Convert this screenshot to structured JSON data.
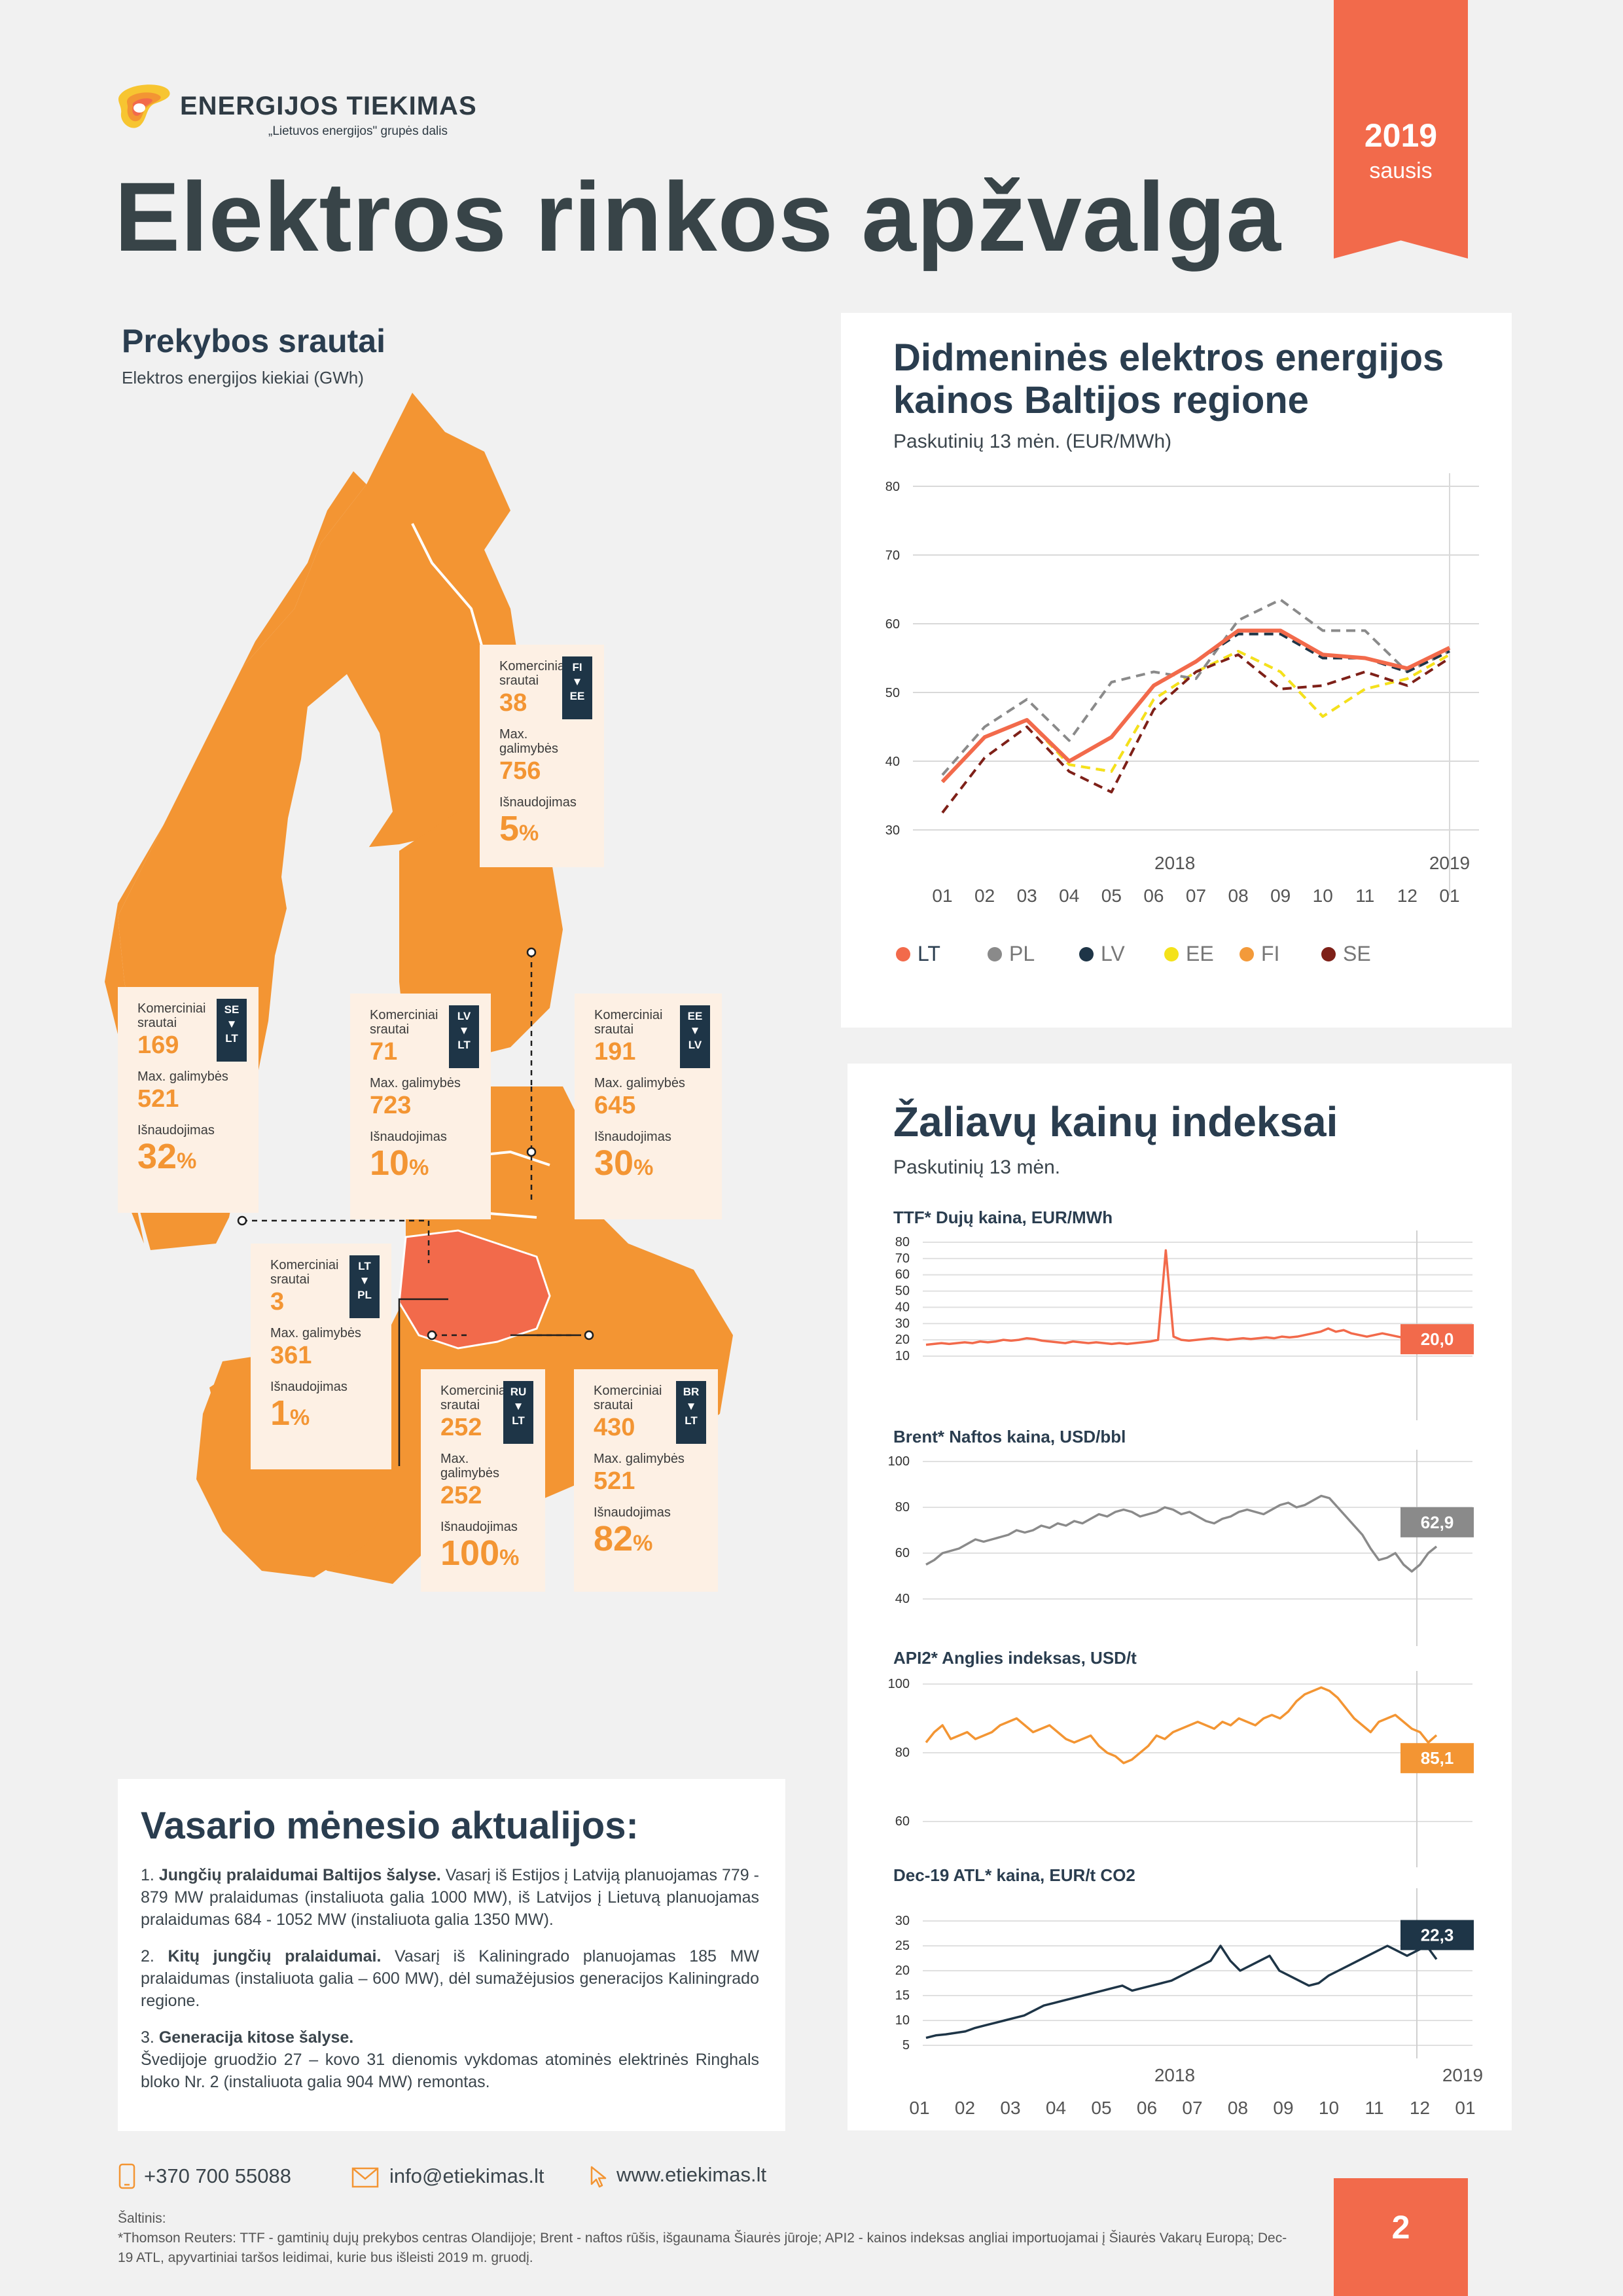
{
  "header": {
    "company": "ENERGIJOS TIEKIMAS",
    "company_sub": "„Lietuvos energijos\" grupės dalis",
    "title": "Elektros rinkos apžvalga",
    "year": "2019",
    "month": "sausis"
  },
  "trade": {
    "title": "Prekybos srautai",
    "subtitle": "Elektros energijos kiekiai (GWh)",
    "label_commercial": "Komerciniai srautai",
    "label_capacity": "Max. galimybės",
    "label_usage": "Išnaudojimas",
    "pct_sign": "%",
    "flows": [
      {
        "id": "fi-ee",
        "from": "FI",
        "to": "EE",
        "commercial": "38",
        "capacity": "756",
        "usage": "5"
      },
      {
        "id": "se-lt",
        "from": "SE",
        "to": "LT",
        "commercial": "169",
        "capacity": "521",
        "usage": "32"
      },
      {
        "id": "lv-lt",
        "from": "LV",
        "to": "LT",
        "commercial": "71",
        "capacity": "723",
        "usage": "10"
      },
      {
        "id": "ee-lv",
        "from": "EE",
        "to": "LV",
        "commercial": "191",
        "capacity": "645",
        "usage": "30"
      },
      {
        "id": "lt-pl",
        "from": "LT",
        "to": "PL",
        "commercial": "3",
        "capacity": "361",
        "usage": "1"
      },
      {
        "id": "ru-lt",
        "from": "RU",
        "to": "LT",
        "commercial": "252",
        "capacity": "252",
        "usage": "100"
      },
      {
        "id": "br-lt",
        "from": "BR",
        "to": "LT",
        "commercial": "430",
        "capacity": "521",
        "usage": "82"
      }
    ]
  },
  "prices": {
    "title_line1": "Didmeninės elektros energijos",
    "title_line2": "kainos Baltijos regione",
    "subtitle": "Paskutinių 13 mėn. (EUR/MWh)"
  },
  "commodities": {
    "title": "Žaliavų kainų indeksai",
    "subtitle": "Paskutinių 13 mėn."
  },
  "news": {
    "title": "Vasario mėnesio aktualijos:",
    "items": [
      {
        "num": "1.",
        "head": "Jungčių pralaidumai Baltijos šalyse.",
        "body": " Vasarį iš Estijos į Latviją planuojamas 779 - 879 MW pralaidumas (instaliuota galia 1000 MW), iš Latvijos į Lietuvą planuojamas pralaidumas 684 - 1052 MW (instaliuota galia 1350 MW)."
      },
      {
        "num": "2.",
        "head": "Kitų jungčių pralaidumai.",
        "body": " Vasarį iš Kaliningrado planuojamas 185 MW pralaidumas (instaliuota galia – 600 MW), dėl sumažėjusios generacijos Kaliningrado regione."
      },
      {
        "num": "3.",
        "head": "Generacija kitose šalyse.",
        "body": "Švedijoje gruodžio 27 – kovo 31 dienomis vykdomas atominės elektrinės Ringhals bloko Nr. 2 (instaliuota galia 904 MW) remontas."
      }
    ]
  },
  "footer": {
    "phone": "+370 700 55088",
    "email": "info@etiekimas.lt",
    "web": "www.etiekimas.lt",
    "sources_label": "Šaltinis:",
    "sources_text": "*Thomson Reuters: TTF - gamtinių dujų prekybos centras Olandijoje; Brent - naftos rūšis, išgaunama Šiaurės jūroje; API2 - kainos indeksas angliai importuojamai į Šiaurės Vakarų Europą; Dec-19 ATL, apyvartiniai taršos leidimai, kurie bus išleisti 2019 m. gruodį.",
    "page": "2"
  },
  "colors": {
    "accent": "#f26a4b",
    "orange": "#f39533",
    "navy": "#1e3547",
    "LT": "#f26a4b",
    "PL": "#8a8a8a",
    "LV": "#1e3547",
    "EE": "#f4e21a",
    "FI": "#f39a3a",
    "SE": "#7e2018"
  },
  "chart_data": [
    {
      "id": "electricity",
      "type": "line",
      "x": [
        "01",
        "02",
        "03",
        "04",
        "05",
        "06",
        "07",
        "08",
        "09",
        "10",
        "11",
        "12",
        "01"
      ],
      "year_labels": [
        "2018",
        "2019"
      ],
      "ylim": [
        30,
        80
      ],
      "yticks": [
        30,
        40,
        50,
        60,
        70,
        80
      ],
      "series": [
        {
          "name": "LT",
          "style": "solid",
          "values": [
            37,
            43.5,
            46,
            40,
            43.5,
            51,
            54.5,
            59,
            59,
            55.5,
            55,
            53.5,
            56.5
          ]
        },
        {
          "name": "PL",
          "style": "dashed",
          "values": [
            38,
            45,
            49,
            43,
            51.5,
            53,
            52,
            60.5,
            63.5,
            59,
            59,
            53,
            56
          ]
        },
        {
          "name": "LV",
          "style": "dashed",
          "values": [
            37,
            43.5,
            46,
            40,
            43.5,
            51,
            54.5,
            58.5,
            58.5,
            55,
            55,
            53,
            56
          ]
        },
        {
          "name": "EE",
          "style": "dashed",
          "values": [
            37,
            43.5,
            46,
            39.5,
            38.5,
            49,
            53,
            56,
            53,
            46.5,
            50.5,
            52,
            55.5
          ]
        },
        {
          "name": "FI",
          "style": "dashed",
          "values": [
            37,
            43.5,
            46,
            39.5,
            38.5,
            49,
            53,
            56,
            53,
            46.5,
            50.5,
            52,
            55.5
          ]
        },
        {
          "name": "SE",
          "style": "dashed",
          "values": [
            32.5,
            40.5,
            45,
            38.5,
            35.5,
            47.5,
            53,
            55.5,
            50.5,
            51,
            53,
            51,
            55
          ]
        }
      ]
    },
    {
      "id": "ttf",
      "type": "line",
      "title": "TTF* Dujų kaina, EUR/MWh",
      "ylim": [
        10,
        80
      ],
      "yticks": [
        10,
        20,
        30,
        40,
        50,
        60,
        70,
        80
      ],
      "last_value": "20,0",
      "color": "#f26a4b",
      "points": [
        17,
        17.5,
        18,
        17.5,
        18,
        18.5,
        18,
        19,
        18.5,
        19,
        20,
        19.5,
        20,
        21,
        20.5,
        19.5,
        19,
        18.5,
        18,
        19,
        18.5,
        18,
        18.5,
        18,
        17.5,
        18,
        17.5,
        18,
        18.5,
        19,
        20,
        75,
        22,
        20,
        19.5,
        20,
        20.5,
        21,
        20.5,
        20,
        20.5,
        21,
        20.5,
        21,
        21.5,
        21,
        22,
        21.5,
        22,
        23,
        24,
        25,
        27,
        25,
        26,
        24,
        23,
        22,
        23,
        24,
        23,
        22,
        21,
        22,
        21,
        20.5,
        20
      ]
    },
    {
      "id": "brent",
      "type": "line",
      "title": "Brent* Naftos kaina, USD/bbl",
      "ylim": [
        40,
        100
      ],
      "yticks": [
        40,
        60,
        80,
        100
      ],
      "last_value": "62,9",
      "color": "#8a8a8a",
      "points": [
        55,
        57,
        60,
        61,
        62,
        64,
        66,
        65,
        66,
        67,
        68,
        70,
        69,
        70,
        72,
        71,
        73,
        72,
        74,
        73,
        75,
        77,
        76,
        78,
        79,
        78,
        76,
        77,
        78,
        80,
        79,
        77,
        78,
        76,
        74,
        73,
        75,
        76,
        78,
        79,
        78,
        77,
        79,
        81,
        82,
        80,
        81,
        83,
        85,
        84,
        80,
        76,
        72,
        68,
        62,
        57,
        58,
        60,
        55,
        52,
        55,
        60,
        62.9
      ]
    },
    {
      "id": "api2",
      "type": "line",
      "title": "API2* Anglies indeksas, USD/t",
      "ylim": [
        60,
        100
      ],
      "yticks": [
        60,
        80,
        100
      ],
      "last_value": "85,1",
      "color": "#f39533",
      "points": [
        83,
        86,
        88,
        84,
        85,
        86,
        84,
        85,
        86,
        88,
        89,
        90,
        88,
        86,
        87,
        88,
        86,
        84,
        83,
        84,
        85,
        82,
        80,
        79,
        77,
        78,
        80,
        82,
        85,
        84,
        86,
        87,
        88,
        89,
        88,
        87,
        89,
        88,
        90,
        89,
        88,
        90,
        91,
        90,
        92,
        95,
        97,
        98,
        99,
        98,
        96,
        93,
        90,
        88,
        86,
        89,
        90,
        91,
        89,
        87,
        86,
        83,
        85.1
      ]
    },
    {
      "id": "ets",
      "type": "line",
      "title": "Dec-19 ATL* kaina, EUR/t CO2",
      "ylim": [
        5,
        30
      ],
      "yticks": [
        5,
        10,
        15,
        20,
        25,
        30
      ],
      "last_value": "22,3",
      "color": "#1e3547",
      "x": [
        "01",
        "02",
        "03",
        "04",
        "05",
        "06",
        "07",
        "08",
        "09",
        "10",
        "11",
        "12",
        "01"
      ],
      "year_labels": [
        "2018",
        "2019"
      ],
      "points": [
        6.5,
        7,
        7.2,
        7.5,
        7.8,
        8.5,
        9,
        9.5,
        10,
        10.5,
        11,
        12,
        13,
        13.5,
        14,
        14.5,
        15,
        15.5,
        16,
        16.5,
        17,
        16,
        16.5,
        17,
        17.5,
        18,
        19,
        20,
        21,
        22,
        25,
        22,
        20,
        21,
        22,
        23,
        20,
        19,
        18,
        17,
        17.5,
        19,
        20,
        21,
        22,
        23,
        24,
        25,
        24,
        23,
        24,
        25,
        22.3
      ]
    }
  ]
}
